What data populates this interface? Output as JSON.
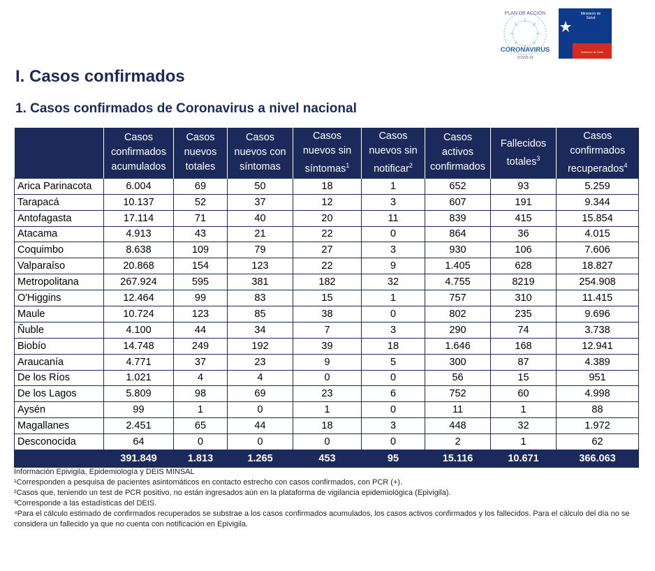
{
  "logos": {
    "corona": {
      "top": "PLAN DE ACCIÓN",
      "main": "CORONAVIRUS",
      "sub": "COVID-19"
    },
    "minsal": {
      "line1": "Ministerio de",
      "line2": "Salud",
      "gov": "Gobierno de Chile"
    }
  },
  "heading1": "I. Casos confirmados",
  "heading2": "1. Casos confirmados de Coronavirus a nivel nacional",
  "columns": [
    {
      "lines": [
        "Casos",
        "confirmados",
        "acumulados"
      ],
      "sup": ""
    },
    {
      "lines": [
        "Casos",
        "nuevos",
        "totales"
      ],
      "sup": ""
    },
    {
      "lines": [
        "Casos",
        "nuevos con",
        "síntomas"
      ],
      "sup": ""
    },
    {
      "lines": [
        "Casos",
        "nuevos sin",
        "síntomas"
      ],
      "sup": "1"
    },
    {
      "lines": [
        "Casos",
        "nuevos sin",
        "notificar"
      ],
      "sup": "2"
    },
    {
      "lines": [
        "Casos",
        "activos",
        "confirmados"
      ],
      "sup": ""
    },
    {
      "lines": [
        "Fallecidos",
        "totales"
      ],
      "sup": "3"
    },
    {
      "lines": [
        "Casos",
        "confirmados",
        "recuperados"
      ],
      "sup": "4"
    }
  ],
  "rows": [
    [
      "Arica Parinacota",
      "6.004",
      "69",
      "50",
      "18",
      "1",
      "652",
      "93",
      "5.259"
    ],
    [
      "Tarapacá",
      "10.137",
      "52",
      "37",
      "12",
      "3",
      "607",
      "191",
      "9.344"
    ],
    [
      "Antofagasta",
      "17.114",
      "71",
      "40",
      "20",
      "11",
      "839",
      "415",
      "15.854"
    ],
    [
      "Atacama",
      "4.913",
      "43",
      "21",
      "22",
      "0",
      "864",
      "36",
      "4.015"
    ],
    [
      "Coquimbo",
      "8.638",
      "109",
      "79",
      "27",
      "3",
      "930",
      "106",
      "7.606"
    ],
    [
      "Valparaíso",
      "20.868",
      "154",
      "123",
      "22",
      "9",
      "1.405",
      "628",
      "18.827"
    ],
    [
      "Metropolitana",
      "267.924",
      "595",
      "381",
      "182",
      "32",
      "4.755",
      "8219",
      "254.908"
    ],
    [
      "O'Higgins",
      "12.464",
      "99",
      "83",
      "15",
      "1",
      "757",
      "310",
      "11.415"
    ],
    [
      "Maule",
      "10.724",
      "123",
      "85",
      "38",
      "0",
      "802",
      "235",
      "9.696"
    ],
    [
      "Ñuble",
      "4.100",
      "44",
      "34",
      "7",
      "3",
      "290",
      "74",
      "3.738"
    ],
    [
      "Biobío",
      "14.748",
      "249",
      "192",
      "39",
      "18",
      "1.646",
      "168",
      "12.941"
    ],
    [
      "Araucanía",
      "4.771",
      "37",
      "23",
      "9",
      "5",
      "300",
      "87",
      "4.389"
    ],
    [
      "De los Ríos",
      "1.021",
      "4",
      "4",
      "0",
      "0",
      "56",
      "15",
      "951"
    ],
    [
      "De los Lagos",
      "5.809",
      "98",
      "69",
      "23",
      "6",
      "752",
      "60",
      "4.998"
    ],
    [
      "Aysén",
      "99",
      "1",
      "0",
      "1",
      "0",
      "11",
      "1",
      "88"
    ],
    [
      "Magallanes",
      "2.451",
      "65",
      "44",
      "18",
      "3",
      "448",
      "32",
      "1.972"
    ],
    [
      "Desconocida",
      "64",
      "0",
      "0",
      "0",
      "0",
      "2",
      "1",
      "62"
    ]
  ],
  "totals": [
    "",
    "391.849",
    "1.813",
    "1.265",
    "453",
    "95",
    "15.116",
    "10.671",
    "366.063"
  ],
  "notes": [
    "Información Epivigila, Epidemiología y DEIS MINSAL",
    "¹Corresponden a pesquisa de pacientes asintomáticos en contacto estrecho con casos confirmados, con PCR (+).",
    "²Casos que, teniendo un test de PCR positivo, no están ingresados aún en la plataforma de vigilancia epidemiológica (Epivigila).",
    "³Corresponde a las estadísticas del DEIS.",
    "⁴Para el cálculo estimado de confirmados recuperados se substrae a los casos confirmados acumulados, los casos activos confirmados y los fallecidos. Para el cálculo del día no se considera un fallecido ya que no cuenta con notificación en Epivigila."
  ],
  "colors": {
    "navy": "#1b2a5b",
    "minsal_blue": "#0f3a8a",
    "minsal_red": "#d52b1e"
  }
}
